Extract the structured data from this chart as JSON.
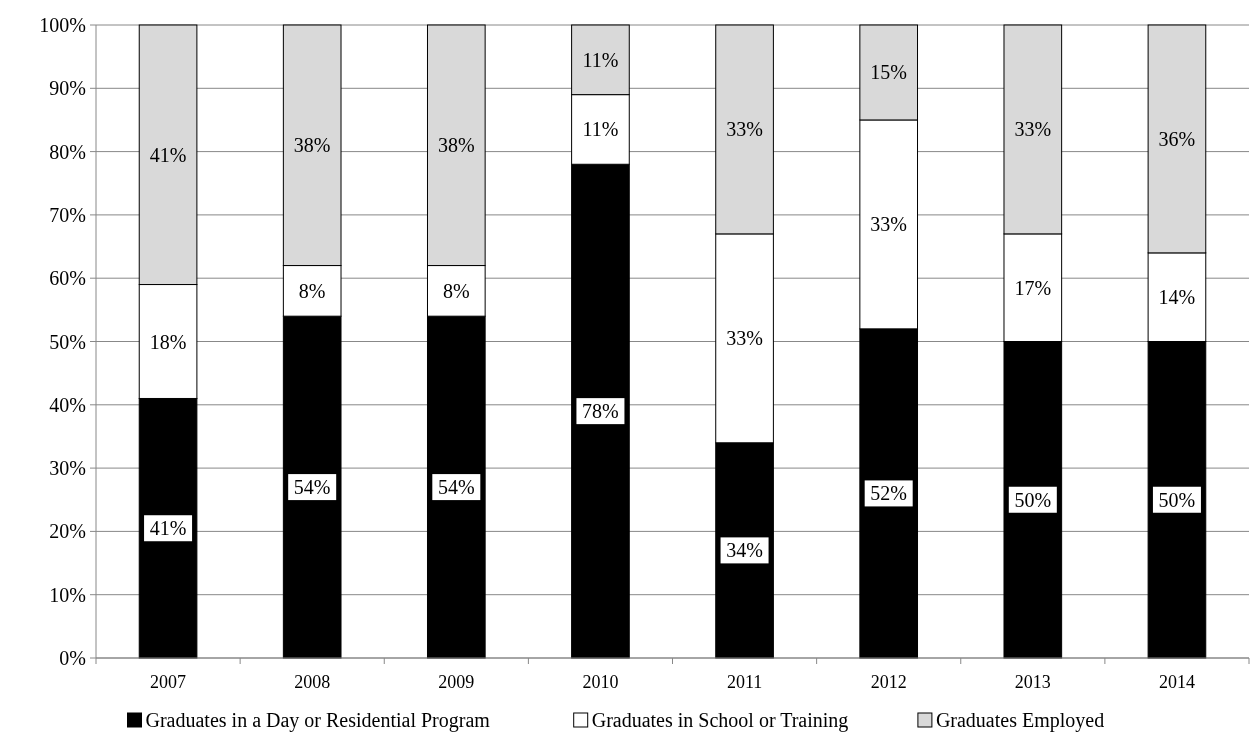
{
  "chart_data": {
    "type": "bar",
    "stacked": true,
    "categories": [
      "2007",
      "2008",
      "2009",
      "2010",
      "2011",
      "2012",
      "2013",
      "2014"
    ],
    "series": [
      {
        "name": "Graduates in a Day or Residential Program",
        "color": "#000000",
        "values": [
          41,
          54,
          54,
          78,
          34,
          52,
          50,
          50
        ],
        "value_labels": [
          "41%",
          "54%",
          "54%",
          "78%",
          "34%",
          "52%",
          "50%",
          "50%"
        ]
      },
      {
        "name": "Graduates in School or Training",
        "color": "#ffffff",
        "values": [
          18,
          8,
          8,
          11,
          33,
          33,
          17,
          14
        ],
        "value_labels": [
          "18%",
          "8%",
          "8%",
          "11%",
          "33%",
          "33%",
          "17%",
          "14%"
        ]
      },
      {
        "name": "Graduates Employed",
        "color": "#d9d9d9",
        "values": [
          41,
          38,
          38,
          11,
          33,
          15,
          33,
          36
        ],
        "value_labels": [
          "41%",
          "38%",
          "38%",
          "11%",
          "33%",
          "15%",
          "33%",
          "36%"
        ]
      }
    ],
    "ylim": [
      0,
      100
    ],
    "yticks": [
      {
        "value": 0,
        "label": "0%"
      },
      {
        "value": 10,
        "label": "10%"
      },
      {
        "value": 20,
        "label": "20%"
      },
      {
        "value": 30,
        "label": "30%"
      },
      {
        "value": 40,
        "label": "40%"
      },
      {
        "value": 50,
        "label": "50%"
      },
      {
        "value": 60,
        "label": "60%"
      },
      {
        "value": 70,
        "label": "70%"
      },
      {
        "value": 80,
        "label": "80%"
      },
      {
        "value": 90,
        "label": "90%"
      },
      {
        "value": 100,
        "label": "100%"
      }
    ],
    "grid": "y",
    "legend": "bottom"
  }
}
